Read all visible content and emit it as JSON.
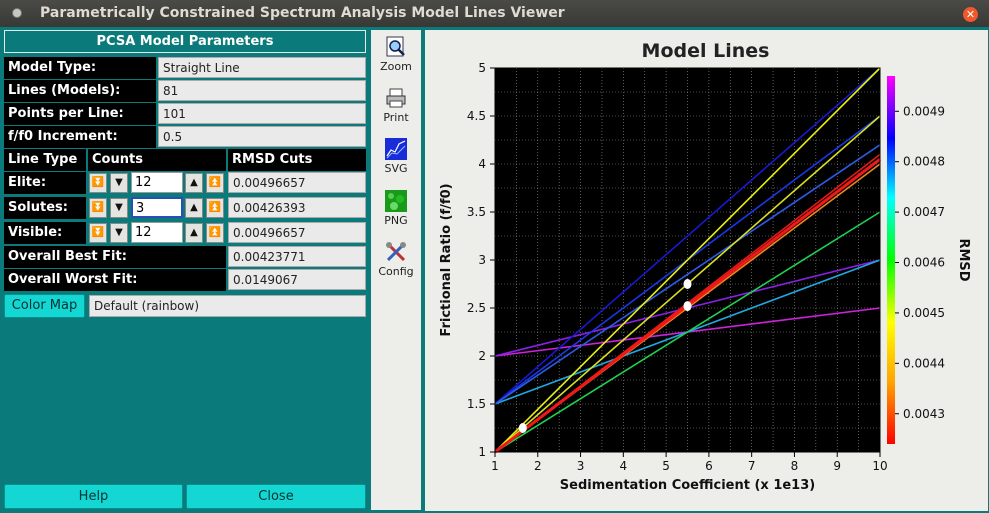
{
  "window": {
    "title": "Parametrically Constrained Spectrum Analysis Model Lines Viewer"
  },
  "params": {
    "header": "PCSA Model Parameters",
    "rows": [
      {
        "label": "Model Type:",
        "value": "Straight Line"
      },
      {
        "label": "Lines (Models):",
        "value": "81"
      },
      {
        "label": "Points per Line:",
        "value": "101"
      },
      {
        "label": "f/f0 Increment:",
        "value": "0.5"
      }
    ]
  },
  "cuts": {
    "headers": [
      "Line Type",
      "Counts",
      "RMSD Cuts"
    ],
    "rows": [
      {
        "label": "Elite:",
        "count": "12",
        "rmsd": "0.00496657"
      },
      {
        "label": "Solutes:",
        "count": "3",
        "rmsd": "0.00426393"
      },
      {
        "label": "Visible:",
        "count": "12",
        "rmsd": "0.00496657"
      }
    ]
  },
  "fits": [
    {
      "label": "Overall Best Fit:",
      "value": "0.00423771"
    },
    {
      "label": "Overall Worst Fit:",
      "value": "0.0149067"
    }
  ],
  "colormap": {
    "button": "Color Map",
    "value": "Default (rainbow)"
  },
  "bottom": {
    "help": "Help",
    "close": "Close"
  },
  "toolbar": [
    {
      "label": "Zoom",
      "icon": "zoom-icon"
    },
    {
      "label": "Print",
      "icon": "printer-icon"
    },
    {
      "label": "SVG",
      "icon": "svg-icon"
    },
    {
      "label": "PNG",
      "icon": "png-icon"
    },
    {
      "label": "Config",
      "icon": "config-icon"
    }
  ],
  "chart_data": {
    "type": "line",
    "title": "Model Lines",
    "xlabel": "Sedimentation Coefficient (x 1e13)",
    "ylabel": "Frictional Ratio (f/f0)",
    "colorbar_label": "RMSD",
    "xlim": [
      1,
      10
    ],
    "ylim": [
      1,
      5
    ],
    "xticks": [
      "1",
      "2",
      "3",
      "4",
      "5",
      "6",
      "7",
      "8",
      "9",
      "10"
    ],
    "yticks": [
      "1",
      "1.5",
      "2",
      "2.5",
      "3",
      "3.5",
      "4",
      "4.5",
      "5"
    ],
    "colorbar_ticks": [
      "0.0043",
      "0.0044",
      "0.0045",
      "0.0046",
      "0.0047",
      "0.0048",
      "0.0049"
    ],
    "colorbar_range": [
      0.00424,
      0.00497
    ],
    "grid": true,
    "background": "#000000",
    "series": [
      {
        "x": [
          1,
          10
        ],
        "y": [
          2,
          2.5
        ],
        "color": "#d020e0"
      },
      {
        "x": [
          1,
          10
        ],
        "y": [
          2,
          3
        ],
        "color": "#8a20e8"
      },
      {
        "x": [
          1,
          10
        ],
        "y": [
          1.5,
          3
        ],
        "color": "#20a8e0"
      },
      {
        "x": [
          1,
          10
        ],
        "y": [
          1.5,
          4.5
        ],
        "color": "#1838e8"
      },
      {
        "x": [
          1,
          10
        ],
        "y": [
          1.5,
          5
        ],
        "color": "#1818d0"
      },
      {
        "x": [
          1,
          10
        ],
        "y": [
          1.5,
          4.2
        ],
        "color": "#2a5ce8"
      },
      {
        "x": [
          1,
          10
        ],
        "y": [
          1,
          3.5
        ],
        "color": "#20d050"
      },
      {
        "x": [
          1,
          10
        ],
        "y": [
          1,
          4.5
        ],
        "color": "#d8e020"
      },
      {
        "x": [
          1,
          10
        ],
        "y": [
          1,
          5
        ],
        "color": "#e8f010"
      },
      {
        "x": [
          1,
          10
        ],
        "y": [
          1,
          4
        ],
        "color": "#e88a20"
      },
      {
        "x": [
          1,
          10
        ],
        "y": [
          1,
          4.05
        ],
        "color": "#f03010"
      },
      {
        "x": [
          1,
          10
        ],
        "y": [
          1,
          4.1
        ],
        "color": "#e81818"
      }
    ],
    "markers": [
      {
        "x": 1.65,
        "y": 1.25,
        "color": "#ffffff"
      },
      {
        "x": 5.5,
        "y": 2.52,
        "color": "#ffffff"
      },
      {
        "x": 5.5,
        "y": 2.75,
        "color": "#ffffff"
      }
    ]
  }
}
